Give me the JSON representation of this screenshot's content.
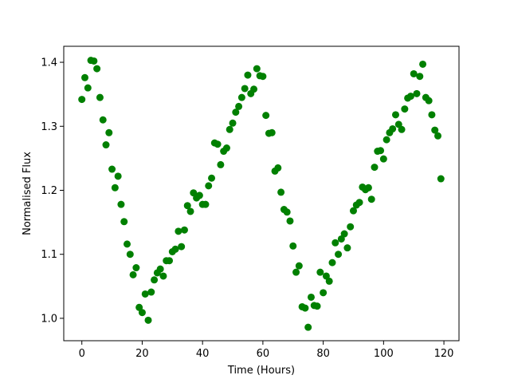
{
  "chart_data": {
    "type": "scatter",
    "title": "",
    "xlabel": "Time (Hours)",
    "ylabel": "Normalised Flux",
    "xlim": [
      -6,
      125
    ],
    "ylim": [
      0.965,
      1.425
    ],
    "xticks": [
      0,
      20,
      40,
      60,
      80,
      100,
      120
    ],
    "yticks": [
      1.0,
      1.1,
      1.2,
      1.3,
      1.4
    ],
    "xtick_labels": [
      "0",
      "20",
      "40",
      "60",
      "80",
      "100",
      "120"
    ],
    "ytick_labels": [
      "1.0",
      "1.1",
      "1.2",
      "1.3",
      "1.4"
    ],
    "grid": false,
    "marker_color": "#008000",
    "series": [
      {
        "x": [
          0,
          1,
          2,
          3,
          4,
          5,
          6,
          7,
          8,
          9,
          10,
          11,
          12,
          13,
          14,
          15,
          16,
          17,
          18,
          19,
          20,
          21,
          22,
          23,
          24,
          25,
          26,
          27,
          28,
          29,
          30,
          31,
          32,
          33,
          34,
          35,
          36,
          37,
          38,
          39,
          40,
          41,
          42,
          43,
          44,
          45,
          46,
          47,
          48,
          49,
          50,
          51,
          52,
          53,
          54,
          55,
          56,
          57,
          58,
          59,
          60,
          61,
          62,
          63,
          64,
          65,
          66,
          67,
          68,
          69,
          70,
          71,
          72,
          73,
          74,
          75,
          76,
          77,
          78,
          79,
          80,
          81,
          82,
          83,
          84,
          85,
          86,
          87,
          88,
          89,
          90,
          91,
          92,
          93,
          94,
          95,
          96,
          97,
          98,
          99,
          100,
          101,
          102,
          103,
          104,
          105,
          106,
          107,
          108,
          109,
          110,
          111,
          112,
          113,
          114,
          115,
          116,
          117,
          118,
          119
        ],
        "y": [
          1.342,
          1.376,
          1.36,
          1.403,
          1.402,
          1.39,
          1.345,
          1.31,
          1.271,
          1.29,
          1.233,
          1.204,
          1.222,
          1.178,
          1.151,
          1.116,
          1.1,
          1.068,
          1.079,
          1.017,
          1.009,
          1.038,
          0.997,
          1.041,
          1.06,
          1.071,
          1.077,
          1.066,
          1.09,
          1.09,
          1.104,
          1.108,
          1.136,
          1.112,
          1.138,
          1.176,
          1.167,
          1.196,
          1.188,
          1.192,
          1.178,
          1.178,
          1.207,
          1.219,
          1.274,
          1.272,
          1.24,
          1.261,
          1.266,
          1.295,
          1.305,
          1.322,
          1.331,
          1.345,
          1.359,
          1.38,
          1.351,
          1.358,
          1.39,
          1.379,
          1.378,
          1.317,
          1.289,
          1.29,
          1.23,
          1.235,
          1.197,
          1.17,
          1.166,
          1.152,
          1.113,
          1.072,
          1.082,
          1.018,
          1.016,
          0.986,
          1.033,
          1.02,
          1.019,
          1.072,
          1.04,
          1.066,
          1.058,
          1.087,
          1.118,
          1.1,
          1.124,
          1.132,
          1.11,
          1.143,
          1.168,
          1.177,
          1.181,
          1.205,
          1.201,
          1.204,
          1.186,
          1.236,
          1.261,
          1.262,
          1.249,
          1.279,
          1.29,
          1.296,
          1.318,
          1.303,
          1.295,
          1.327,
          1.344,
          1.347,
          1.382,
          1.351,
          1.378,
          1.397,
          1.345,
          1.34,
          1.318,
          1.294,
          1.285,
          1.218
        ]
      }
    ]
  }
}
